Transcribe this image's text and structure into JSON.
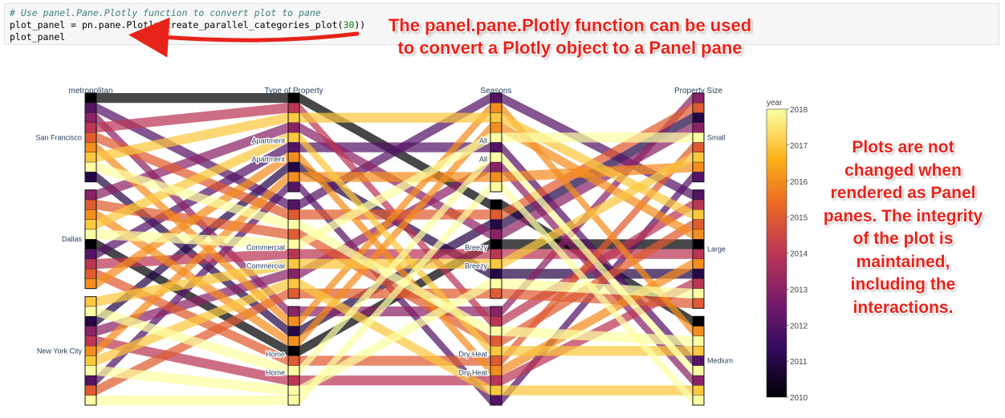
{
  "code_cell": {
    "comment": "# Use panel.Pane.Plotly function to convert plot to pane",
    "line2_prefix": "plot_panel = pn.pane.Plotly(",
    "line2_hidden": "create_parallel_categories_plot",
    "line2_paren": "(",
    "line2_number": "30",
    "line2_suffix": "))",
    "line3": "plot_panel"
  },
  "annotations": {
    "top_line1": "The panel.pane.Plotly function can be used",
    "top_line2": "to convert a Plotly object to a Panel pane",
    "right_lines": [
      "Plots are not",
      "changed when",
      "rendered as Panel",
      "panes. The integrity",
      "of the plot is",
      "maintained,",
      "including the",
      "interactions."
    ]
  },
  "colors": {
    "annotation": "#e8231a",
    "arrow": "#e8231a",
    "code_background": "#f7f7f7"
  },
  "chart_data": {
    "type": "parallel_categories",
    "dimensions": [
      {
        "label": "metropolitan",
        "categories": [
          "San Francisco",
          "Dallas",
          "New York City"
        ]
      },
      {
        "label": "Type of Property",
        "categories": [
          "Apartment",
          "Apartment",
          "Commercial",
          "Commercial",
          "Home",
          "Home"
        ]
      },
      {
        "label": "Seasons",
        "categories": [
          "All",
          "All",
          "Breezy",
          "Breezy",
          "Dry Heat",
          "Dry Heat"
        ]
      },
      {
        "label": "Property Size",
        "categories": [
          "Small",
          "Large",
          "Medium"
        ]
      }
    ],
    "colorbar": {
      "title": "year",
      "ticks": [
        "2018",
        "2017",
        "2016",
        "2015",
        "2014",
        "2013",
        "2012",
        "2011",
        "2010"
      ],
      "range": [
        2010,
        2018
      ],
      "colorscale": [
        "#000004",
        "#320a5e",
        "#781b6c",
        "#bb3654",
        "#ec6824",
        "#fbb41a",
        "#fcffa4"
      ]
    },
    "record_years": [
      2010,
      2012,
      2013,
      2014,
      2015,
      2016,
      2017,
      2018,
      2011,
      2013,
      2015,
      2016,
      2017,
      2018,
      2010,
      2012,
      2014,
      2015,
      2016,
      2017,
      2018,
      2011,
      2013,
      2014,
      2016,
      2017,
      2018,
      2012,
      2015,
      2018
    ]
  }
}
